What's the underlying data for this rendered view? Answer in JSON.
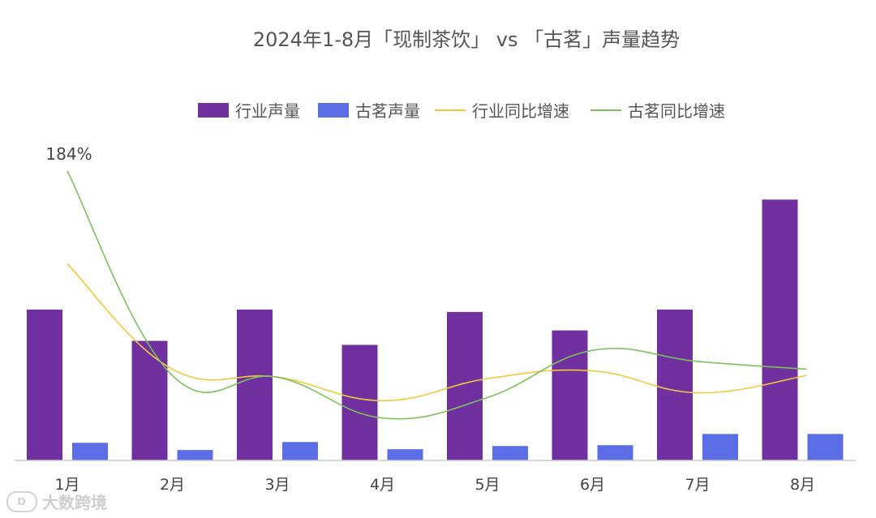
{
  "chart_data": {
    "type": "bar",
    "title": "2024年1-8月「现制茶饮」 vs 「古茗」声量趋势",
    "categories": [
      "1月",
      "2月",
      "3月",
      "4月",
      "5月",
      "6月",
      "7月",
      "8月"
    ],
    "series": [
      {
        "name": "行业声量",
        "kind": "bar",
        "color": "#7030a0",
        "values": [
          188,
          149,
          188,
          144,
          185,
          162,
          188,
          325
        ]
      },
      {
        "name": "古茗声量",
        "kind": "bar",
        "color": "#5b6ee6",
        "values": [
          22,
          13,
          23,
          14,
          18,
          19,
          33,
          33
        ]
      },
      {
        "name": "行业同比增速",
        "kind": "line",
        "color": "#f0c93a",
        "values": [
          125,
          58,
          53,
          38,
          52,
          57,
          43,
          54
        ]
      },
      {
        "name": "古茗同比增速",
        "kind": "line",
        "color": "#7cc05a",
        "values": [
          184,
          54,
          53,
          27,
          40,
          70,
          63,
          58
        ]
      }
    ],
    "annotations": [
      {
        "series": "古茗同比增速",
        "index": 0,
        "label": "184%"
      }
    ],
    "legend_position": "top-center",
    "grid": false
  },
  "watermark": {
    "text": "大数跨境",
    "logo": "Ɒ"
  }
}
